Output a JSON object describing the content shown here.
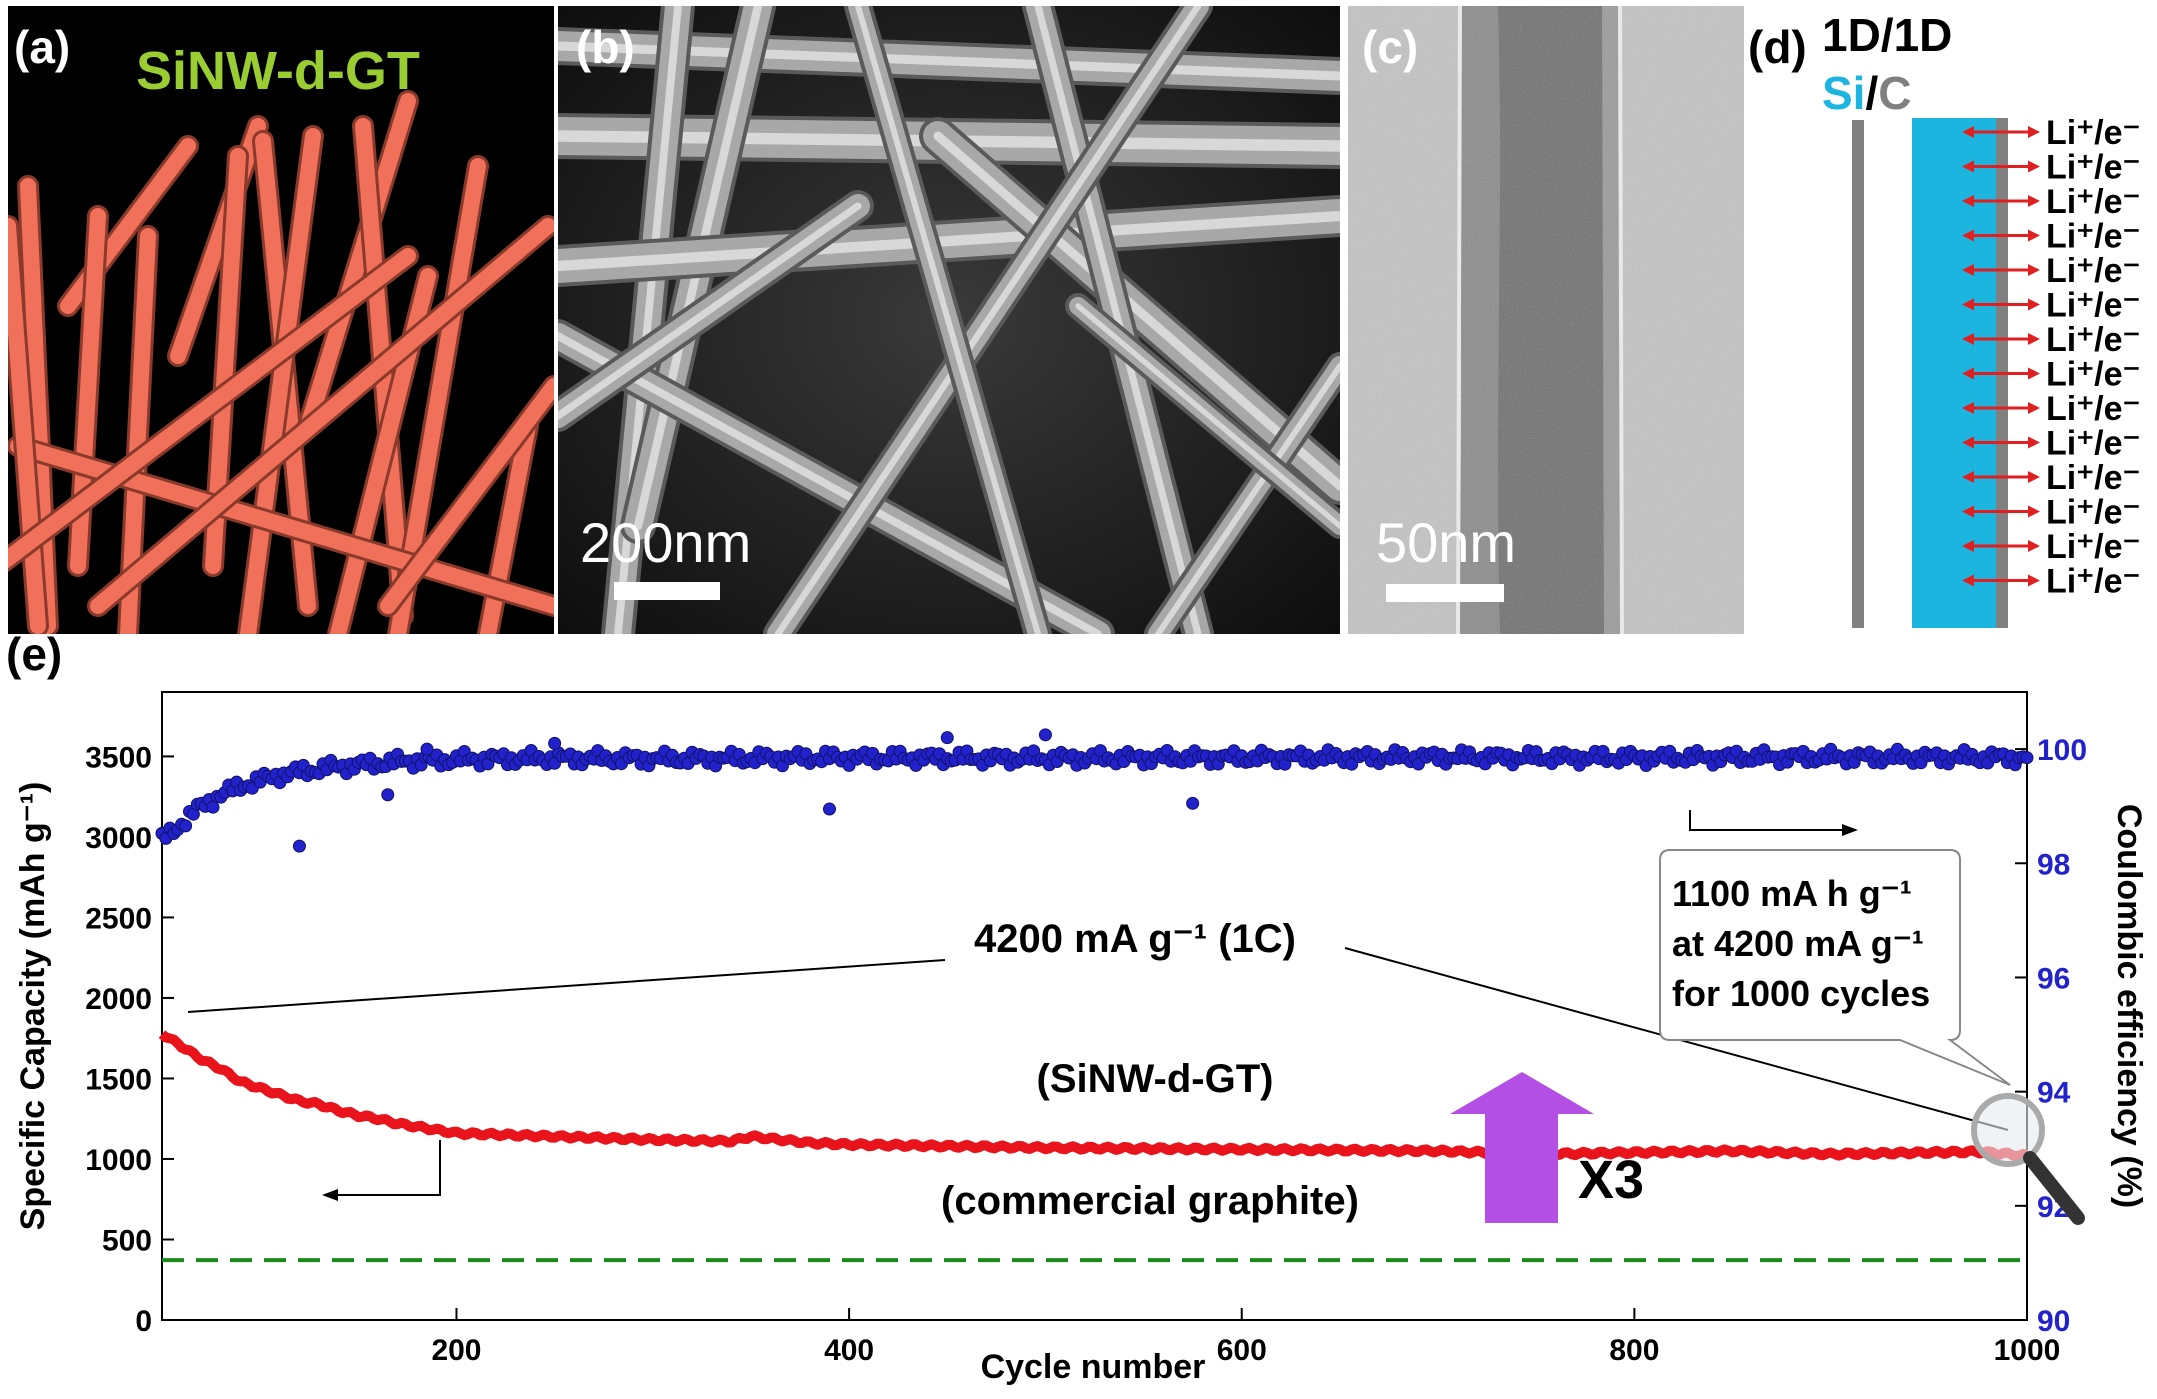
{
  "panels": {
    "a": {
      "label": "(a)",
      "title": "SiNW-d-GT",
      "colors": {
        "rod": "#f0705a",
        "title": "#9acd32"
      }
    },
    "b": {
      "label": "(b)",
      "scale_text": "200nm"
    },
    "c": {
      "label": "(c)",
      "scale_text": "50nm"
    },
    "d": {
      "label": "(d)",
      "title": "1D/1D",
      "si": "Si",
      "slash": "/",
      "c": "C",
      "ion_label": "Li⁺/e⁻",
      "ion_rows": 14,
      "colors": {
        "si": "#1cb5e0",
        "c": "#808080",
        "arrow": "#e02020"
      }
    }
  },
  "e_label": "(e)",
  "chart_data": {
    "type": "scatter",
    "xlabel": "Cycle number",
    "ylabel": "Specific Capacity (mAh g⁻¹)",
    "y2label": "Coulombic efficiency (%)",
    "xlim": [
      50,
      1000
    ],
    "ylim": [
      0,
      3900
    ],
    "y2lim": [
      90,
      101
    ],
    "x_ticks": [
      200,
      400,
      600,
      800,
      1000
    ],
    "y_ticks": [
      0,
      500,
      1000,
      1500,
      2000,
      2500,
      3000,
      3500
    ],
    "y2_ticks": [
      90,
      92,
      94,
      96,
      98,
      100
    ],
    "series": [
      {
        "key": "capacity",
        "axis": "left",
        "color": "#e8131b",
        "x": [
          50,
          60,
          70,
          80,
          90,
          100,
          110,
          120,
          130,
          140,
          150,
          160,
          170,
          180,
          190,
          200,
          250,
          300,
          340,
          350,
          380,
          400,
          500,
          600,
          700,
          750,
          800,
          850,
          900,
          950,
          975,
          1000
        ],
        "values": [
          1780,
          1700,
          1620,
          1560,
          1480,
          1440,
          1400,
          1360,
          1340,
          1300,
          1270,
          1250,
          1220,
          1200,
          1180,
          1160,
          1140,
          1120,
          1110,
          1140,
          1100,
          1090,
          1070,
          1060,
          1050,
          1030,
          1040,
          1050,
          1030,
          1040,
          1045,
          1020
        ]
      },
      {
        "key": "efficiency",
        "axis": "right",
        "color": "#2222cc",
        "x": [
          50,
          60,
          70,
          80,
          90,
          100,
          110,
          120,
          130,
          140,
          150,
          160,
          170,
          180,
          190,
          200,
          250,
          300,
          400,
          500,
          600,
          700,
          800,
          900,
          1000
        ],
        "values": [
          98.4,
          98.7,
          99.0,
          99.2,
          99.35,
          99.45,
          99.55,
          99.6,
          99.65,
          99.7,
          99.72,
          99.75,
          99.78,
          99.8,
          99.8,
          99.82,
          99.84,
          99.83,
          99.85,
          99.84,
          99.85,
          99.86,
          99.85,
          99.86,
          99.85
        ]
      },
      {
        "key": "graphite",
        "axis": "left",
        "color": "#1a8a1a",
        "style": "dashed",
        "x": [
          50,
          1000
        ],
        "values": [
          372,
          372
        ]
      }
    ],
    "outliers": [
      {
        "x": 120,
        "value": 98.3
      },
      {
        "x": 165,
        "value": 99.2
      },
      {
        "x": 185,
        "value": 100.0
      },
      {
        "x": 390,
        "value": 98.95
      },
      {
        "x": 575,
        "value": 99.05
      },
      {
        "x": 250,
        "value": 100.1
      },
      {
        "x": 450,
        "value": 100.2
      },
      {
        "x": 500,
        "value": 100.25
      }
    ],
    "annotations": {
      "rate": "4200 mA g⁻¹ (1C)",
      "sample": "(SiNW-d-GT)",
      "graphite": "(commercial graphite)",
      "factor": "X3",
      "callout_1": "1100 mA h g⁻¹",
      "callout_2": "at 4200 mA g⁻¹",
      "callout_3": "for 1000 cycles"
    },
    "colors": {
      "arrow": "#b44fe6",
      "axis2": "#2222cc"
    }
  }
}
